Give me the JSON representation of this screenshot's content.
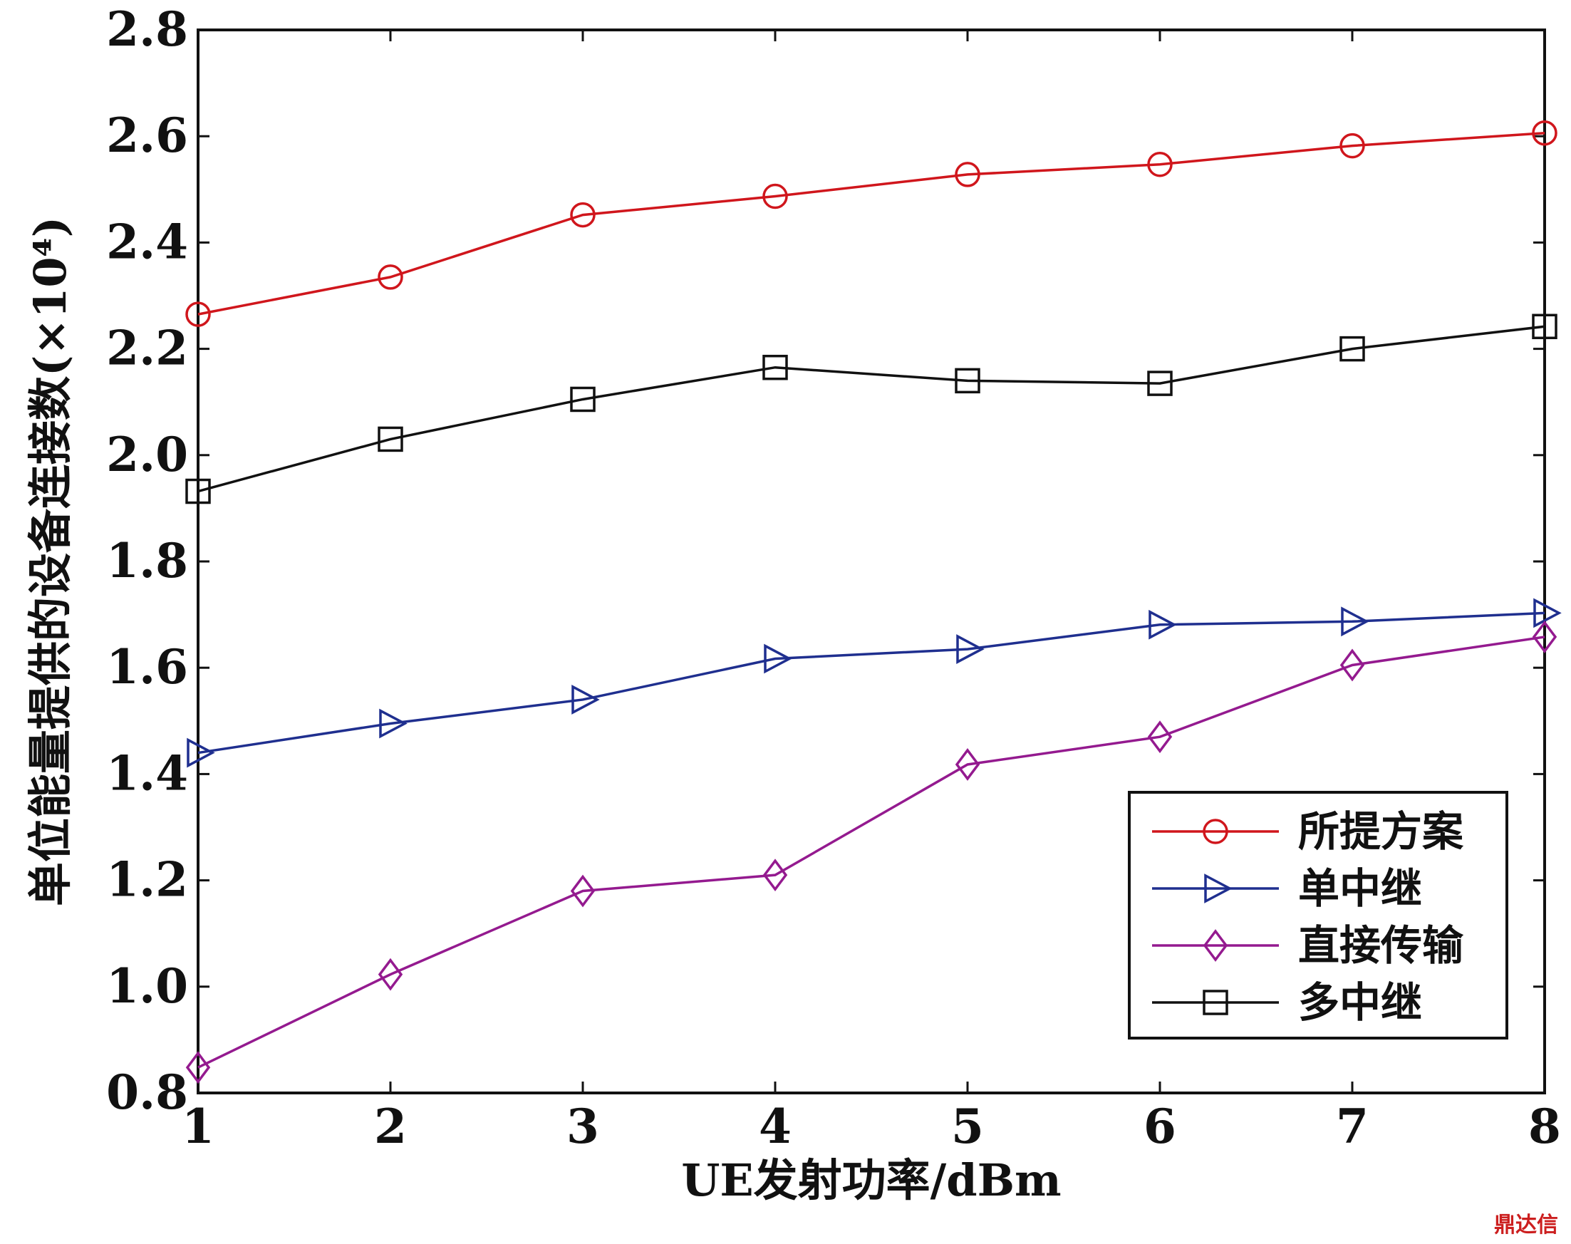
{
  "chart_data": {
    "type": "line",
    "xlabel": "UE发射功率/dBm",
    "ylabel": "单位能量提供的设备连接数(×10⁴)",
    "x": [
      1,
      2,
      3,
      4,
      5,
      6,
      7,
      8
    ],
    "xlim": [
      1,
      8
    ],
    "ylim": [
      0.8,
      2.8
    ],
    "xticks": [
      "1",
      "2",
      "3",
      "4",
      "5",
      "6",
      "7",
      "8"
    ],
    "yticks": [
      "0.8",
      "1.0",
      "1.2",
      "1.4",
      "1.6",
      "1.8",
      "2.0",
      "2.2",
      "2.4",
      "2.6",
      "2.8"
    ],
    "grid": false,
    "legend_position": "lower-right",
    "series": [
      {
        "name": "所提方案",
        "color": "#d0161c",
        "marker": "circle",
        "values": [
          2.265,
          2.335,
          2.452,
          2.487,
          2.528,
          2.547,
          2.582,
          2.606
        ]
      },
      {
        "name": "单中继",
        "color": "#1f2f8f",
        "marker": "triangle-right",
        "values": [
          1.44,
          1.495,
          1.54,
          1.617,
          1.635,
          1.681,
          1.687,
          1.703
        ]
      },
      {
        "name": "直接传输",
        "color": "#941a8f",
        "marker": "diamond",
        "values": [
          0.848,
          1.023,
          1.18,
          1.21,
          1.418,
          1.47,
          1.605,
          1.658
        ]
      },
      {
        "name": "多中继",
        "color": "#111111",
        "marker": "square",
        "values": [
          1.932,
          2.03,
          2.105,
          2.165,
          2.14,
          2.135,
          2.2,
          2.242
        ]
      }
    ]
  },
  "watermark": "鼎达信"
}
